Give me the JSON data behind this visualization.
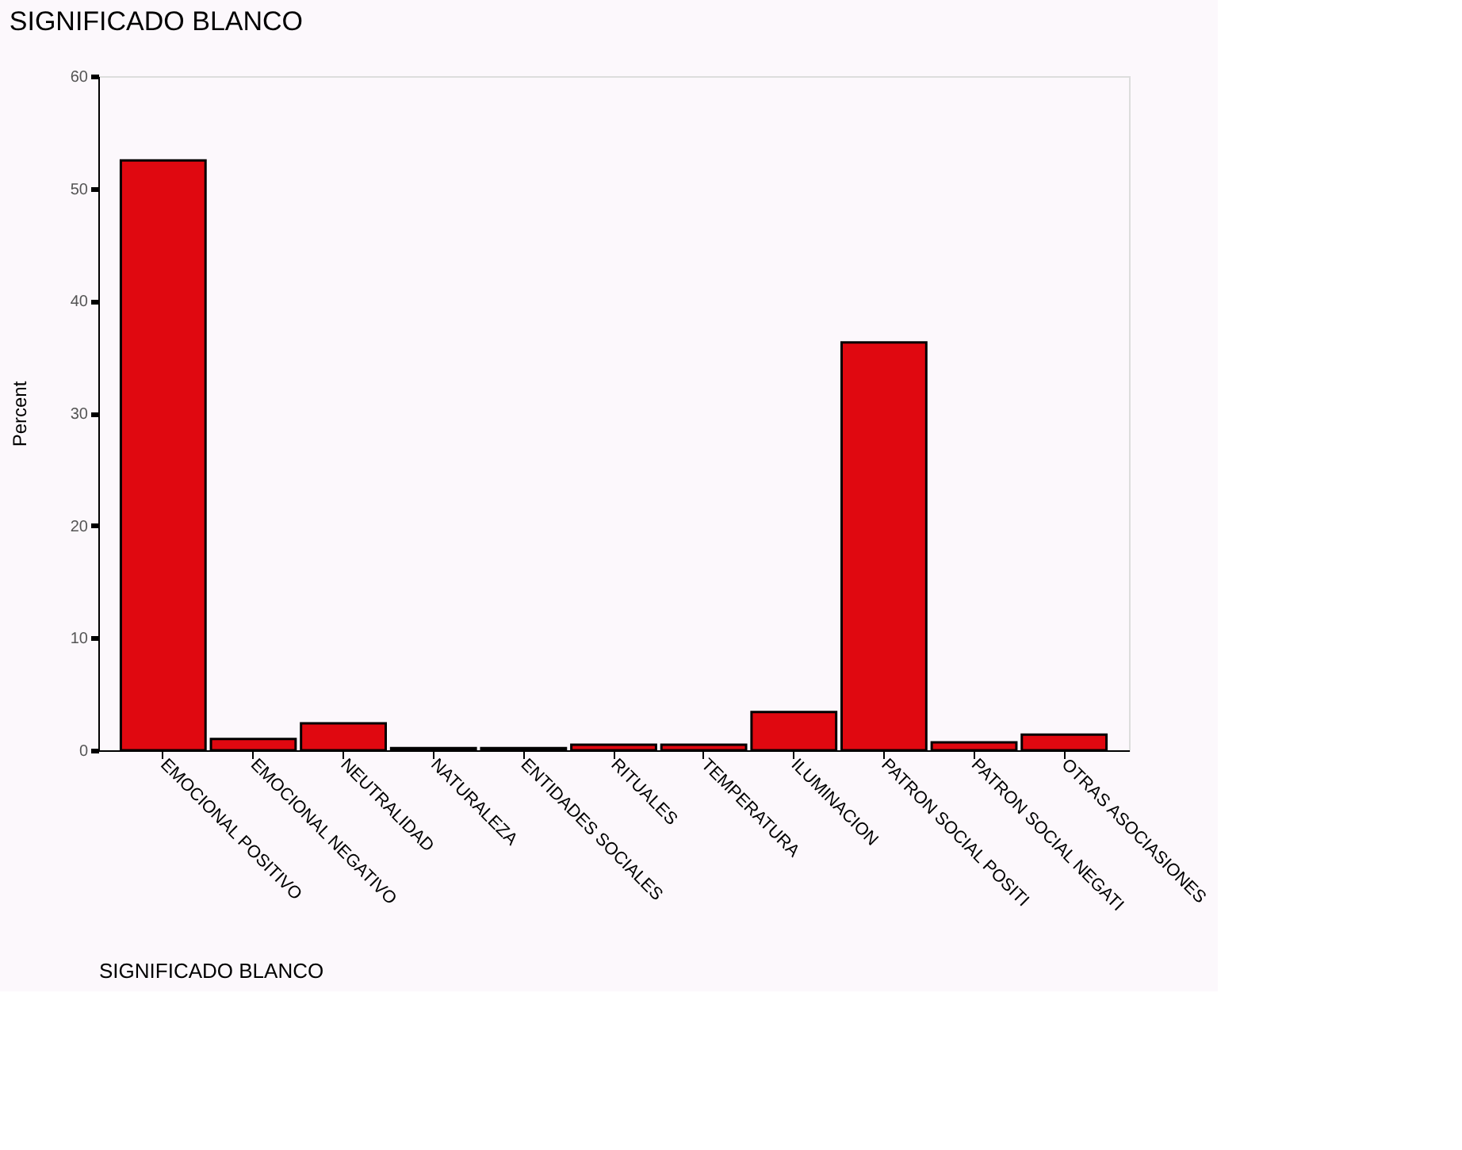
{
  "chart_data": {
    "type": "bar",
    "title": "SIGNIFICADO BLANCO",
    "xlabel": "SIGNIFICADO BLANCO",
    "ylabel": "Percent",
    "categories": [
      "EMOCIONAL POSITIVO",
      "EMOCIONAL NEGATIVO",
      "NEUTRALIDAD",
      "NATURALEZA",
      "ENTIDADES SOCIALES",
      "RITUALES",
      "TEMPERATURA",
      "ILUMINACION",
      "PATRON SOCIAL POSITI",
      "PATRON SOCIAL NEGATI",
      "OTRAS ASOCIASIONES"
    ],
    "values": [
      52.5,
      1.0,
      2.4,
      0.2,
      0.2,
      0.5,
      0.5,
      3.4,
      36.3,
      0.7,
      1.4
    ],
    "color": "#e00810",
    "ylim": [
      0,
      60
    ],
    "yticks": [
      0,
      10,
      20,
      30,
      40,
      50,
      60
    ],
    "grid": false
  }
}
